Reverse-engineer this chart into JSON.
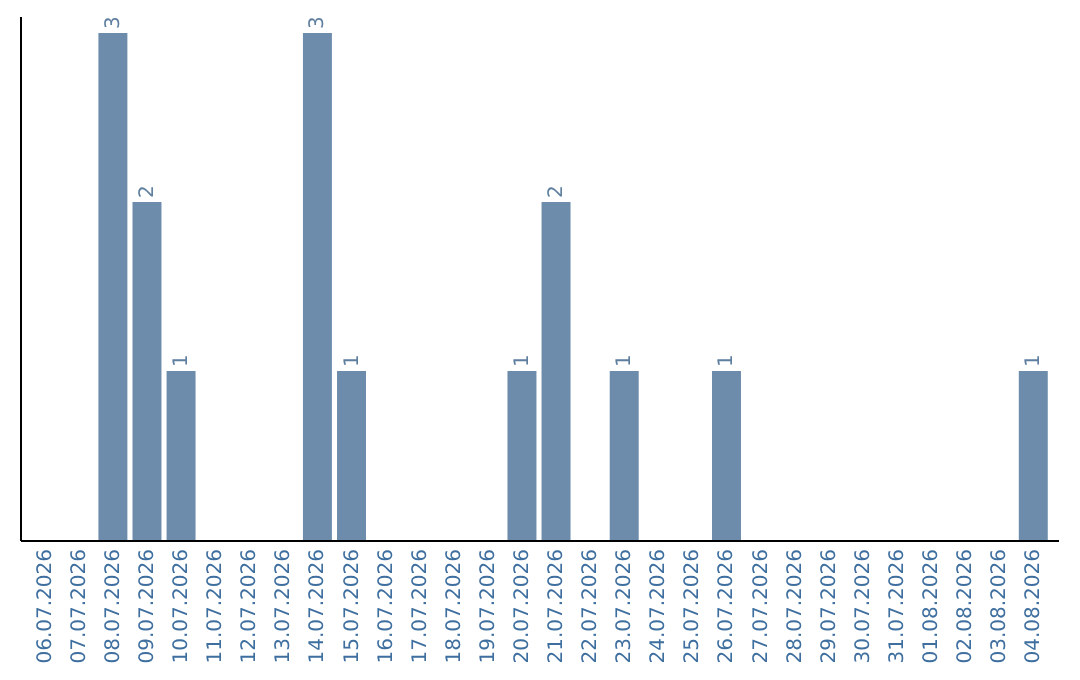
{
  "chart_data": {
    "type": "bar",
    "categories": [
      "06.07.2026",
      "07.07.2026",
      "08.07.2026",
      "09.07.2026",
      "10.07.2026",
      "11.07.2026",
      "12.07.2026",
      "13.07.2026",
      "14.07.2026",
      "15.07.2026",
      "16.07.2026",
      "17.07.2026",
      "18.07.2026",
      "19.07.2026",
      "20.07.2026",
      "21.07.2026",
      "22.07.2026",
      "23.07.2026",
      "24.07.2026",
      "25.07.2026",
      "26.07.2026",
      "27.07.2026",
      "28.07.2026",
      "29.07.2026",
      "30.07.2026",
      "31.07.2026",
      "01.08.2026",
      "02.08.2026",
      "03.08.2026",
      "04.08.2026"
    ],
    "values": [
      0,
      0,
      3,
      2,
      1,
      0,
      0,
      0,
      3,
      1,
      0,
      0,
      0,
      0,
      1,
      2,
      0,
      1,
      0,
      0,
      1,
      0,
      0,
      0,
      0,
      0,
      0,
      0,
      0,
      1
    ],
    "value_labels": [
      null,
      null,
      "3",
      "2",
      "1",
      null,
      null,
      null,
      "3",
      "1",
      null,
      null,
      null,
      null,
      "1",
      "2",
      null,
      "1",
      null,
      null,
      "1",
      null,
      null,
      null,
      null,
      null,
      null,
      null,
      null,
      "1"
    ],
    "color": "#6d8cab",
    "ylim": [
      0,
      3.1
    ],
    "tick_labels": "x"
  }
}
